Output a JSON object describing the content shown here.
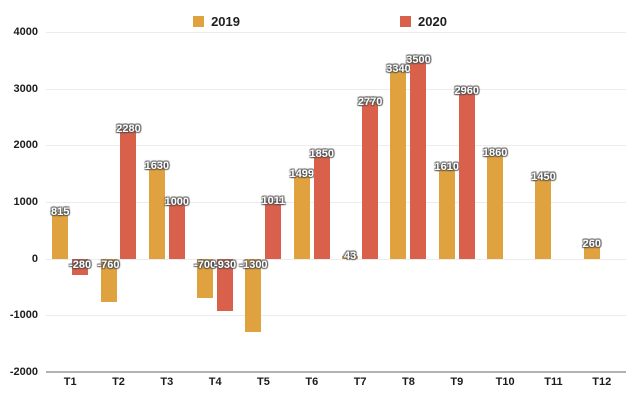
{
  "chart_data": {
    "type": "bar",
    "title": "",
    "categories": [
      "T1",
      "T2",
      "T3",
      "T4",
      "T5",
      "T6",
      "T7",
      "T8",
      "T9",
      "T10",
      "T11",
      "T12"
    ],
    "series": [
      {
        "name": "2019",
        "color": "#DFA23E",
        "values": [
          815,
          -760,
          1630,
          -700,
          -1300,
          1499,
          43,
          3340,
          1610,
          1860,
          1450,
          260
        ]
      },
      {
        "name": "2020",
        "color": "#D9604A",
        "values": [
          -280,
          2280,
          1000,
          -930,
          1011,
          1850,
          2770,
          3500,
          2960,
          null,
          null,
          null
        ]
      }
    ],
    "ylim": [
      -2000,
      4000
    ],
    "yticks": [
      4000,
      3000,
      2000,
      1000,
      0,
      -1000,
      -2000
    ],
    "grid": true,
    "legend_position": "top-center",
    "value_labels": "on-bar-top",
    "axis_line_color": "#b2b2b2",
    "gridline_color": "#ececec"
  }
}
